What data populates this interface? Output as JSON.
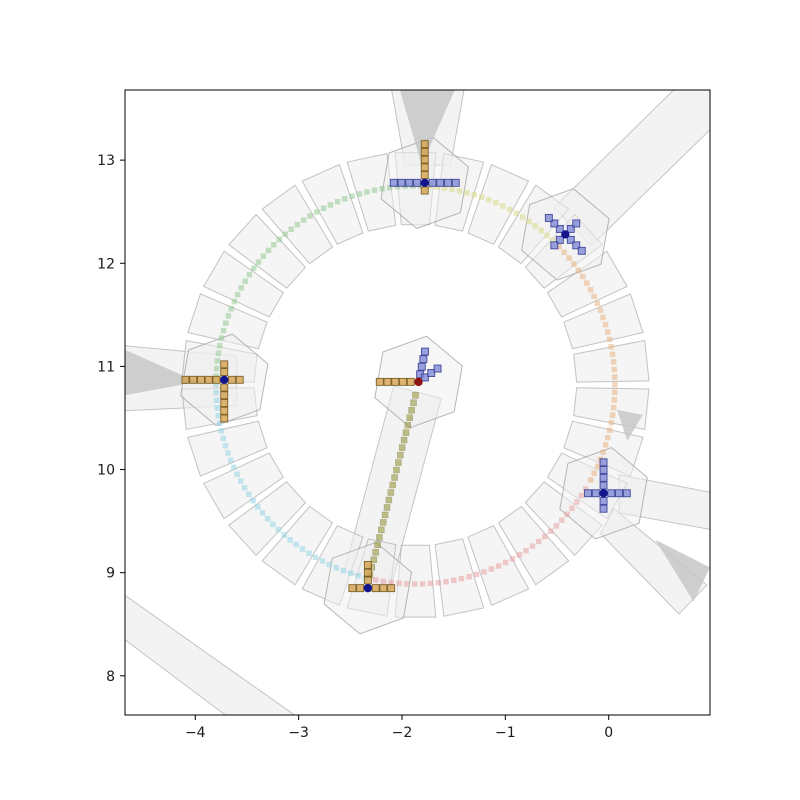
{
  "figure": {
    "background": "#ffffff"
  },
  "chart_data": {
    "type": "scatter",
    "title": "",
    "xlabel": "",
    "ylabel": "",
    "grid": false,
    "legend": null,
    "xlim": [
      -4.68,
      0.98
    ],
    "ylim": [
      7.62,
      13.68
    ],
    "x_ticks": [
      {
        "value": -4,
        "label": "−4"
      },
      {
        "value": -3,
        "label": "−3"
      },
      {
        "value": -2,
        "label": "−2"
      },
      {
        "value": -1,
        "label": "−1"
      },
      {
        "value": 0,
        "label": "0"
      }
    ],
    "y_ticks": [
      {
        "value": 8,
        "label": "8"
      },
      {
        "value": 9,
        "label": "9"
      },
      {
        "value": 10,
        "label": "10"
      },
      {
        "value": 11,
        "label": "11"
      },
      {
        "value": 12,
        "label": "12"
      },
      {
        "value": 13,
        "label": "13"
      }
    ],
    "styles": {
      "road_fill": "#e9e9e9",
      "road_fill_opacity": 0.55,
      "road_stroke": "#bbbbbb",
      "dark_wedge_fill": "#c7c7c7",
      "dark_wedge_opacity": 0.85,
      "lane_fill": "#efefef",
      "lane_fill_opacity": 0.6,
      "lane_stroke": "#a5a5a5",
      "lane_stroke_opacity": 0.65,
      "axis_color": "#000000",
      "tick_label_color": "#1a1a1a",
      "marker_colors": {
        "tan": {
          "fill": "#d4a24e",
          "stroke": "#71571c"
        },
        "blue": {
          "fill": "#8089d6",
          "stroke": "#333b8f"
        }
      }
    },
    "roundabout": {
      "center": [
        -1.87,
        10.82
      ],
      "lane_inner_radius": 1.56,
      "lane_outer_radius": 2.26,
      "num_lane_segments": 30,
      "trajectory_radius": 1.93,
      "hex_radius": 0.45
    },
    "ring_trajectories": [
      {
        "name": "arc-west-to-north",
        "color": "#8cc88a",
        "opacity": 0.5,
        "start_angle": 88.5,
        "end_angle": 177.5
      },
      {
        "name": "arc-north-to-northeast",
        "color": "#d8d88a",
        "opacity": 0.55,
        "start_angle": 46.5,
        "end_angle": 86.0
      },
      {
        "name": "arc-northeast-to-east",
        "color": "#e7b282",
        "opacity": 0.55,
        "start_angle": -28.5,
        "end_angle": 44.0
      },
      {
        "name": "arc-east-to-south",
        "color": "#e79b9b",
        "opacity": 0.5,
        "start_angle": -101.5,
        "end_angle": -31.5
      },
      {
        "name": "arc-west-to-south",
        "color": "#96d6e3",
        "opacity": 0.55,
        "start_angle": 180.0,
        "end_angle": 255.5
      }
    ],
    "straight_trajectories": [
      {
        "name": "south-to-center-path",
        "color": "#97973f",
        "opacity": 0.6,
        "from": [
          -2.31,
          8.98
        ],
        "to": [
          -1.87,
          10.72
        ]
      }
    ],
    "nodes": [
      {
        "name": "north-agent",
        "pos": [
          -1.78,
          12.78
        ],
        "dot_color": "#14148c",
        "arms": [
          {
            "angle": 90,
            "count": 5,
            "color": "tan"
          },
          {
            "angle": 270,
            "count": 1,
            "color": "tan"
          },
          {
            "angle": 0,
            "count": 4,
            "color": "blue"
          },
          {
            "angle": 180,
            "count": 4,
            "color": "blue"
          }
        ]
      },
      {
        "name": "northeast-agent",
        "pos": [
          -0.42,
          12.28
        ],
        "dot_color": "#14148c",
        "arms": [
          {
            "angle": 135,
            "count": 3,
            "color": "blue"
          },
          {
            "angle": 315,
            "count": 3,
            "color": "blue"
          },
          {
            "angle": 45,
            "count": 2,
            "color": "blue"
          },
          {
            "angle": 225,
            "count": 2,
            "color": "blue"
          }
        ]
      },
      {
        "name": "west-agent",
        "pos": [
          -3.72,
          10.87
        ],
        "dot_color": "#14148c",
        "arms": [
          {
            "angle": 180,
            "count": 5,
            "color": "tan"
          },
          {
            "angle": 270,
            "count": 5,
            "color": "tan"
          },
          {
            "angle": 90,
            "count": 2,
            "color": "tan"
          },
          {
            "angle": 0,
            "count": 2,
            "color": "tan"
          }
        ]
      },
      {
        "name": "center-agent",
        "pos": [
          -1.84,
          10.85
        ],
        "dot_color": "#8c1414",
        "arms": [
          {
            "angle": 180,
            "count": 5,
            "color": "tan"
          },
          {
            "angle": 78,
            "count": 4,
            "color": "blue"
          },
          {
            "angle": 35,
            "count": 3,
            "color": "blue"
          }
        ]
      },
      {
        "name": "south-agent",
        "pos": [
          -2.33,
          8.85
        ],
        "dot_color": "#14148c",
        "arms": [
          {
            "angle": 90,
            "count": 3,
            "color": "tan"
          },
          {
            "angle": 0,
            "count": 3,
            "color": "tan"
          },
          {
            "angle": 180,
            "count": 2,
            "color": "tan"
          }
        ]
      },
      {
        "name": "east-agent",
        "pos": [
          -0.05,
          9.77
        ],
        "dot_color": "#14148c",
        "arms": [
          {
            "angle": 90,
            "count": 4,
            "color": "blue"
          },
          {
            "angle": 0,
            "count": 3,
            "color": "blue"
          },
          {
            "angle": 270,
            "count": 2,
            "color": "blue"
          },
          {
            "angle": 180,
            "count": 2,
            "color": "blue"
          }
        ]
      }
    ],
    "roads": [
      {
        "name": "north-approach",
        "points": [
          [
            -1.97,
            12.95
          ],
          [
            -1.53,
            12.95
          ],
          [
            -1.4,
            13.68
          ],
          [
            -2.1,
            13.68
          ]
        ]
      },
      {
        "name": "northeast-approach",
        "points": [
          [
            -0.53,
            12.54
          ],
          [
            -0.17,
            12.17
          ],
          [
            1.17,
            13.48
          ],
          [
            0.8,
            13.85
          ]
        ]
      },
      {
        "name": "west-approach",
        "points": [
          [
            -4.68,
            11.2
          ],
          [
            -3.6,
            11.1
          ],
          [
            -3.6,
            10.62
          ],
          [
            -4.68,
            10.57
          ]
        ]
      },
      {
        "name": "east-approach",
        "points": [
          [
            0.1,
            9.95
          ],
          [
            0.98,
            9.78
          ],
          [
            0.98,
            9.42
          ],
          [
            0.1,
            9.58
          ]
        ]
      },
      {
        "name": "southeast-approach",
        "points": [
          [
            0.05,
            9.62
          ],
          [
            0.95,
            8.88
          ],
          [
            0.68,
            8.6
          ],
          [
            -0.08,
            9.38
          ]
        ]
      },
      {
        "name": "southwest-road",
        "points": [
          [
            -4.68,
            8.78
          ],
          [
            -3.04,
            7.62
          ],
          [
            -3.71,
            7.62
          ],
          [
            -4.68,
            8.35
          ]
        ]
      },
      {
        "name": "center-approach",
        "points": [
          [
            -2.56,
            9.01
          ],
          [
            -2.1,
            8.89
          ],
          [
            -1.62,
            10.69
          ],
          [
            -2.08,
            10.81
          ]
        ]
      }
    ],
    "dark_wedges": [
      {
        "name": "north-cone",
        "points": [
          [
            -1.81,
            12.95
          ],
          [
            -2.02,
            13.68
          ],
          [
            -1.49,
            13.68
          ]
        ]
      },
      {
        "name": "west-cone",
        "points": [
          [
            -3.98,
            10.85
          ],
          [
            -4.68,
            11.16
          ],
          [
            -4.68,
            10.72
          ]
        ]
      },
      {
        "name": "ring-direction-arrow",
        "points": [
          [
            0.08,
            10.58
          ],
          [
            0.33,
            10.53
          ],
          [
            0.18,
            10.28
          ]
        ]
      },
      {
        "name": "southeast-cone",
        "points": [
          [
            0.45,
            9.32
          ],
          [
            0.98,
            9.05
          ],
          [
            0.82,
            8.72
          ]
        ]
      }
    ]
  }
}
